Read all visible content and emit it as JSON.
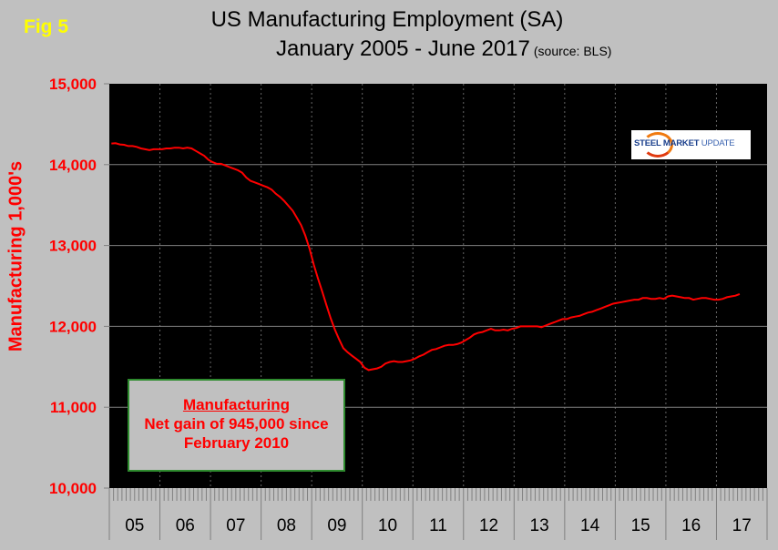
{
  "figure_label": "Fig 5",
  "chart_data": {
    "type": "line",
    "title": "US Manufacturing Employment (SA)",
    "subtitle": "January 2005 - June 2017",
    "source": "(source: BLS)",
    "ylabel": "Manufacturing 1,000's",
    "xlabel": "",
    "ylim": [
      10000,
      15000
    ],
    "yticks": [
      "10,000",
      "11,000",
      "12,000",
      "13,000",
      "14,000",
      "15,000"
    ],
    "ytick_values": [
      10000,
      11000,
      12000,
      13000,
      14000,
      15000
    ],
    "xtick_labels": [
      "05",
      "06",
      "07",
      "08",
      "09",
      "10",
      "11",
      "12",
      "13",
      "14",
      "15",
      "16",
      "17"
    ],
    "x_start": "2005-01",
    "x_end": "2017-06",
    "x_frequency": "monthly",
    "grid": {
      "horizontal": true,
      "vertical": "dashed at year boundaries"
    },
    "colors": {
      "line": "#ff0000",
      "plot_bg": "#000000",
      "page_bg": "#c0c0c0",
      "axis_labels": "#ff0000"
    },
    "series": [
      {
        "values": [
          14261,
          14265,
          14250,
          14246,
          14230,
          14230,
          14220,
          14200,
          14190,
          14180,
          14190,
          14190,
          14190,
          14200,
          14200,
          14210,
          14210,
          14200,
          14210,
          14200,
          14170,
          14140,
          14110,
          14060,
          14030,
          14010,
          14010,
          13990,
          13970,
          13950,
          13930,
          13900,
          13840,
          13800,
          13780,
          13760,
          13740,
          13720,
          13690,
          13640,
          13600,
          13550,
          13490,
          13430,
          13340,
          13250,
          13120,
          12960,
          12760,
          12590,
          12430,
          12260,
          12100,
          11960,
          11840,
          11730,
          11680,
          11640,
          11600,
          11560,
          11490,
          11460,
          11470,
          11480,
          11500,
          11540,
          11560,
          11570,
          11560,
          11560,
          11570,
          11580,
          11600,
          11630,
          11650,
          11680,
          11710,
          11720,
          11740,
          11760,
          11770,
          11770,
          11780,
          11800,
          11830,
          11860,
          11900,
          11920,
          11930,
          11950,
          11970,
          11950,
          11950,
          11960,
          11950,
          11970,
          11980,
          12000,
          12000,
          12000,
          12000,
          12000,
          11990,
          12010,
          12030,
          12050,
          12070,
          12090,
          12090,
          12110,
          12120,
          12130,
          12150,
          12170,
          12180,
          12200,
          12220,
          12240,
          12260,
          12280,
          12290,
          12300,
          12310,
          12320,
          12330,
          12330,
          12350,
          12350,
          12340,
          12340,
          12350,
          12340,
          12370,
          12380,
          12370,
          12360,
          12350,
          12350,
          12330,
          12340,
          12350,
          12350,
          12340,
          12330,
          12330,
          12340,
          12360,
          12370,
          12380,
          12400
        ]
      }
    ],
    "annotation": {
      "heading": "Manufacturing",
      "line1": "Net gain of 945,000 since",
      "line2": "February 2010"
    }
  },
  "logo": {
    "text_bold": "STEEL MARKET",
    "text_light": "UPDATE"
  }
}
